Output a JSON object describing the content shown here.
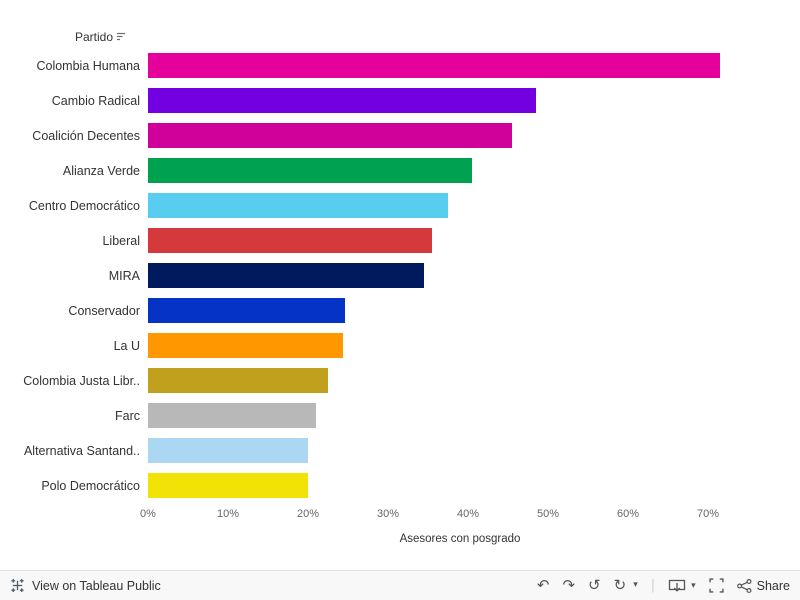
{
  "chart": {
    "column_header": "Partido"
  },
  "chart_data": {
    "type": "bar",
    "orientation": "horizontal",
    "title": "",
    "column_header": "Partido",
    "xlabel": "Asesores con posgrado",
    "value_format": "percent",
    "xlim": [
      0,
      78
    ],
    "x_ticks": [
      0,
      10,
      20,
      30,
      40,
      50,
      60,
      70
    ],
    "grid": false,
    "legend": false,
    "categories": [
      "Colombia Humana",
      "Cambio Radical",
      "Coalición Decentes",
      "Alianza Verde",
      "Centro Democrático",
      "Liberal",
      "MIRA",
      "Conservador",
      "La U",
      "Colombia Justa Libr..",
      "Farc",
      "Alternativa Santand..",
      "Polo Democrático"
    ],
    "values": [
      71.5,
      48.5,
      45.5,
      40.5,
      37.5,
      35.5,
      34.5,
      24.6,
      24.4,
      22.5,
      21.0,
      20.0,
      20.0
    ],
    "colors": [
      "#E5009C",
      "#7300E0",
      "#D0009B",
      "#00A24F",
      "#58CDF0",
      "#D4393C",
      "#001A5E",
      "#0433C6",
      "#FF9800",
      "#C0A01C",
      "#B8B8B8",
      "#ABD7F2",
      "#F2E205"
    ]
  },
  "toolbar": {
    "view_label": "View on Tableau Public",
    "share_label": "Share",
    "glyphs": {
      "undo": "↶",
      "redo": "↷",
      "revert": "↺",
      "refresh": "↻",
      "chevron": "▾",
      "separator": "|"
    }
  }
}
